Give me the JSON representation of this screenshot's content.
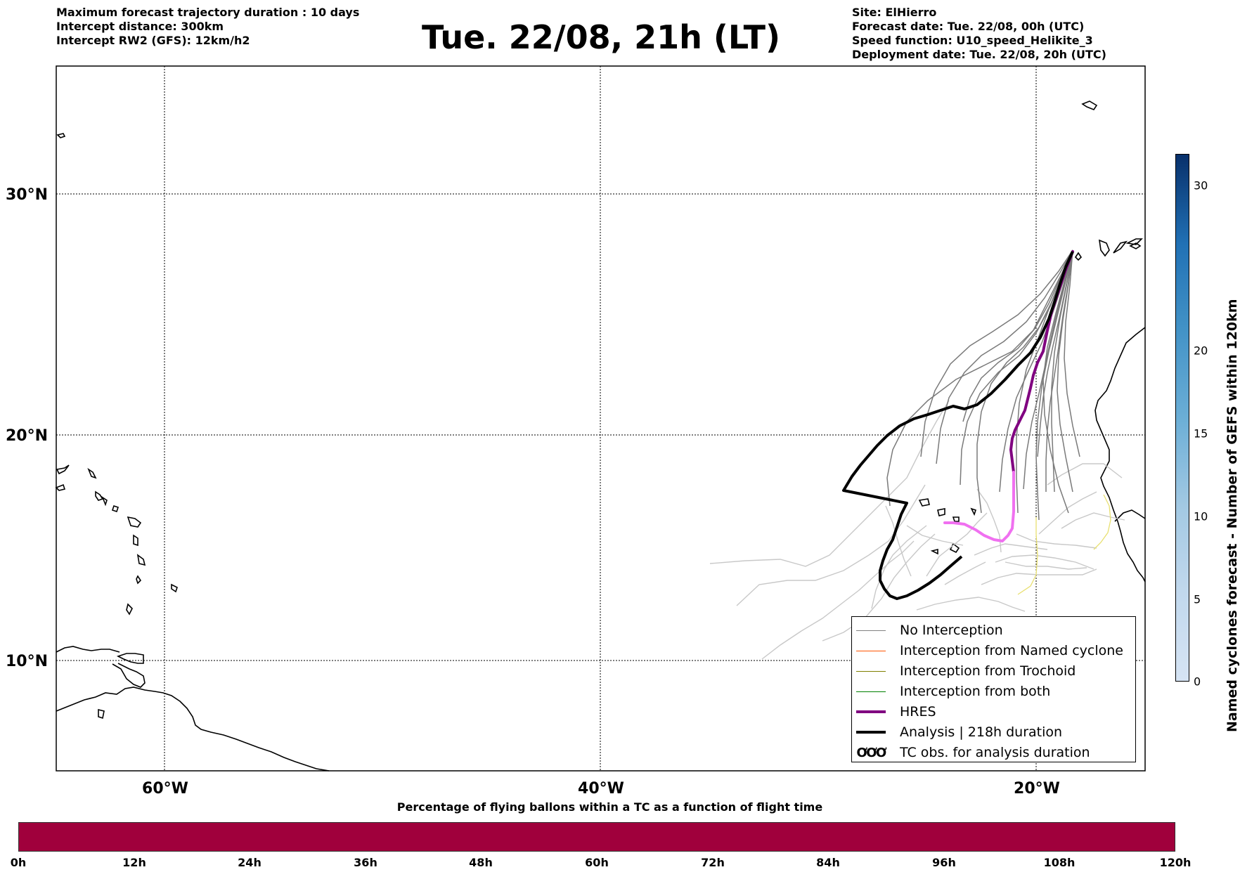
{
  "header_left": {
    "line1": "Maximum forecast trajectory duration : 10 days",
    "line2": "Intercept distance: 300km",
    "line3": "Intercept RW2 (GFS):  12km/h2"
  },
  "title": "Tue. 22/08, 21h (LT)",
  "header_right": {
    "line1": "Site: ElHierro",
    "line2": "Forecast date: Tue. 22/08, 00h (UTC)",
    "line3": "Speed function: U10_speed_Helikite_3",
    "line4": "Deployment date: Tue. 22/08, 20h (UTC)"
  },
  "map": {
    "lat_labels": [
      "30°N",
      "20°N",
      "10°N"
    ],
    "lon_labels": [
      "60°W",
      "40°W",
      "20°W"
    ],
    "colors": {
      "no_interception": "#808080",
      "named_cyclone": "#ff5500",
      "trochoid": "#808000",
      "both": "#008000",
      "hres": "#800080",
      "hres_late": "#f070f0",
      "analysis": "#000000",
      "late_trajectory": "#c8c8c8"
    }
  },
  "legend": {
    "items": [
      {
        "label": "No Interception",
        "color": "#808080"
      },
      {
        "label": "Interception from Named cyclone",
        "color": "#ff5500"
      },
      {
        "label": "Interception from Trochoid",
        "color": "#808000"
      },
      {
        "label": "Interception from both",
        "color": "#008000"
      },
      {
        "label": "HRES",
        "color": "#800080"
      },
      {
        "label": "Analysis | 218h duration",
        "color": "#000000"
      },
      {
        "label": "TC obs. for analysis duration",
        "symbol": "ƠƠƠ"
      }
    ]
  },
  "tc_bar": {
    "title": "Percentage of flying ballons within a TC as a function of flight time",
    "ticks": [
      "0h",
      "12h",
      "24h",
      "36h",
      "48h",
      "60h",
      "72h",
      "84h",
      "96h",
      "108h",
      "120h"
    ],
    "fill_color": "#a0003c"
  },
  "colorbar": {
    "label": "Named cyclones forecast - Number of GEFS within 120km",
    "ticks": [
      "0",
      "5",
      "10",
      "15",
      "20",
      "30"
    ]
  }
}
